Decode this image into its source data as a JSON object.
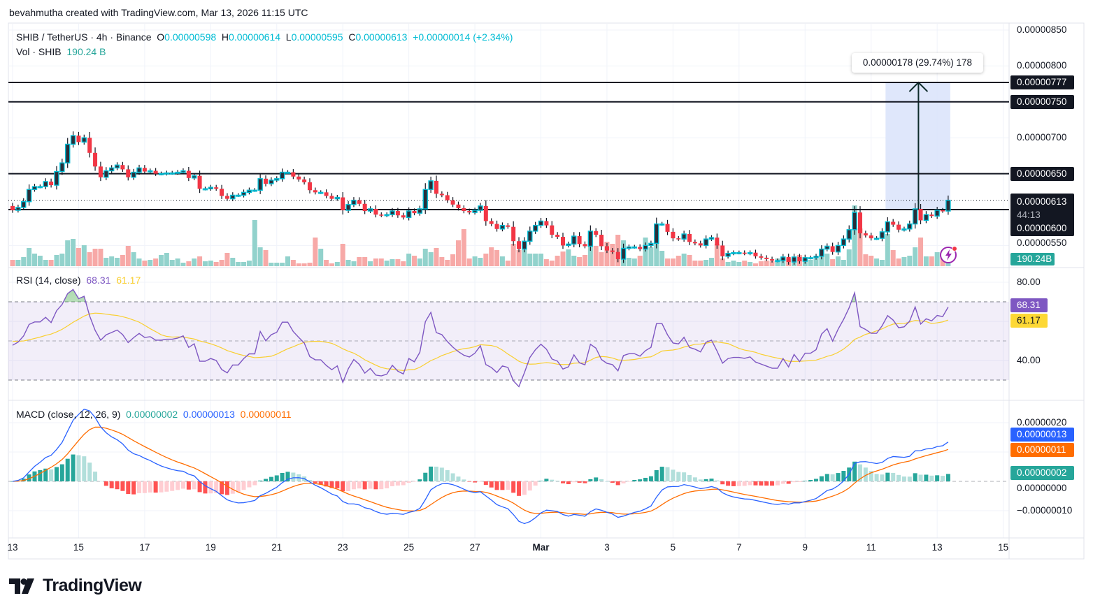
{
  "watermark_text": "bevahmutha created with TradingView.com, Mar 13, 2026 11:15 UTC",
  "legend": {
    "symbol": "SHIB / TetherUS · 4h · Binance",
    "open_label": "O",
    "open": "0.00000598",
    "high_label": "H",
    "high": "0.00000614",
    "low_label": "L",
    "low": "0.00000595",
    "close_label": "C",
    "close": "0.00000613",
    "change": "+0.00000014 (+2.34%)",
    "vol_label": "Vol · SHIB",
    "vol": "190.24 B"
  },
  "rsi_legend": {
    "label": "RSI (14, close)",
    "value": "68.31",
    "ma": "61.17"
  },
  "macd_legend": {
    "label": "MACD (close, 12, 26, 9)",
    "hist": "0.00000002",
    "macd": "0.00000013",
    "signal": "0.00000011"
  },
  "price_axis": {
    "ticks": [
      "0.00000850",
      "0.00000800",
      "0.00000700",
      "0.00000550"
    ],
    "current_price": "0.00000613",
    "countdown": "44:13",
    "volume_badge": "190.24B"
  },
  "horizontal_lines": [
    {
      "price": "0.00000777"
    },
    {
      "price": "0.00000750"
    },
    {
      "price": "0.00000650"
    },
    {
      "price": "0.00000600"
    }
  ],
  "measure": {
    "label": "0.00000178 (29.74%) 178",
    "from_price": "0.00000600",
    "to_price": "0.00000777"
  },
  "rsi_axis": {
    "ticks": [
      "80.00",
      "40.00"
    ],
    "value_badge": "68.31",
    "ma_badge": "61.17",
    "bands": [
      70,
      50,
      30
    ]
  },
  "macd_axis": {
    "ticks": [
      "0.00000020",
      "0.00000000",
      "−0.00000010"
    ],
    "macd_badge": "0.00000013",
    "signal_badge": "0.00000011",
    "hist_badge": "0.00000002"
  },
  "time_axis": [
    "13",
    "15",
    "17",
    "19",
    "21",
    "23",
    "25",
    "27",
    "Mar",
    "3",
    "5",
    "7",
    "9",
    "11",
    "13",
    "15"
  ],
  "logo_text": "TradingView",
  "colors": {
    "up_border": "#00bcd4",
    "up_body": "#2a2e39",
    "down": "#f23645",
    "vol_up": "#92d2cc",
    "vol_down": "#f7a9a7",
    "rsi": "#7e57c2",
    "rsi_ma": "#f9cf30",
    "macd": "#2962ff",
    "signal": "#ff6d00",
    "hist_up_strong": "#26a69a",
    "hist_up_weak": "#b2dfdb",
    "hist_down_strong": "#ff5252",
    "hist_down_weak": "#ffcdd2",
    "volume_badge": "#26a69a",
    "measure_fill": "#dbe4fb"
  },
  "chart_data": {
    "type": "candlestick",
    "symbol": "SHIB / TetherUS",
    "interval": "4h",
    "first_open": 6.05e-06,
    "closes": [
      5.99e-06,
      6.03e-06,
      6.11e-06,
      6.28e-06,
      6.32e-06,
      6.32e-06,
      6.39e-06,
      6.34e-06,
      6.53e-06,
      6.65e-06,
      6.91e-06,
      7.03e-06,
      6.94e-06,
      7e-06,
      6.79e-06,
      6.6e-06,
      6.45e-06,
      6.54e-06,
      6.58e-06,
      6.62e-06,
      6.56e-06,
      6.45e-06,
      6.52e-06,
      6.58e-06,
      6.53e-06,
      6.54e-06,
      6.5e-06,
      6.5e-06,
      6.51e-06,
      6.51e-06,
      6.52e-06,
      6.54e-06,
      6.44e-06,
      6.47e-06,
      6.29e-06,
      6.29e-06,
      6.31e-06,
      6.29e-06,
      6.19e-06,
      6.15e-06,
      6.2e-06,
      6.2e-06,
      6.24e-06,
      6.27e-06,
      6.27e-06,
      6.43e-06,
      6.36e-06,
      6.41e-06,
      6.43e-06,
      6.52e-06,
      6.52e-06,
      6.46e-06,
      6.42e-06,
      6.38e-06,
      6.27e-06,
      6.24e-06,
      6.24e-06,
      6.19e-06,
      6.15e-06,
      6.17e-06,
      5.99e-06,
      6.07e-06,
      6.13e-06,
      6.08e-06,
      5.98e-06,
      6.01e-06,
      5.93e-06,
      5.92e-06,
      5.93e-06,
      5.98e-06,
      5.92e-06,
      5.89e-06,
      5.98e-06,
      5.95e-06,
      6.01e-06,
      6.28e-06,
      6.4e-06,
      6.22e-06,
      6.2e-06,
      6.13e-06,
      6.07e-06,
      6.02e-06,
      5.98e-06,
      5.96e-06,
      5.99e-06,
      6.05e-06,
      5.84e-06,
      5.8e-06,
      5.73e-06,
      5.78e-06,
      5.76e-06,
      5.56e-06,
      5.45e-06,
      5.56e-06,
      5.7e-06,
      5.78e-06,
      5.84e-06,
      5.78e-06,
      5.65e-06,
      5.62e-06,
      5.5e-06,
      5.52e-06,
      5.63e-06,
      5.52e-06,
      5.49e-06,
      5.7e-06,
      5.65e-06,
      5.49e-06,
      5.43e-06,
      5.41e-06,
      5.31e-06,
      5.46e-06,
      5.48e-06,
      5.48e-06,
      5.45e-06,
      5.5e-06,
      5.53e-06,
      5.8e-06,
      5.8e-06,
      5.69e-06,
      5.6e-06,
      5.59e-06,
      5.66e-06,
      5.55e-06,
      5.53e-06,
      5.5e-06,
      5.59e-06,
      5.61e-06,
      5.5e-06,
      5.35e-06,
      5.39e-06,
      5.4e-06,
      5.4e-06,
      5.39e-06,
      5.4e-06,
      5.35e-06,
      5.33e-06,
      5.31e-06,
      5.29e-06,
      5.29e-06,
      5.34e-06,
      5.27e-06,
      5.34e-06,
      5.28e-06,
      5.33e-06,
      5.33e-06,
      5.35e-06,
      5.45e-06,
      5.49e-06,
      5.41e-06,
      5.5e-06,
      5.59e-06,
      5.72e-06,
      5.96e-06,
      5.67e-06,
      5.64e-06,
      5.6e-06,
      5.6e-06,
      5.69e-06,
      5.83e-06,
      5.79e-06,
      5.72e-06,
      5.73e-06,
      5.8e-06,
      6.01e-06,
      5.85e-06,
      5.93e-06,
      5.91e-06,
      5.99e-06,
      5.98e-06,
      6.13e-06
    ],
    "volumes_B": [
      288,
      288,
      416,
      832,
      576,
      480,
      288,
      288,
      512,
      576,
      1184,
      1248,
      832,
      960,
      640,
      800,
      800,
      384,
      448,
      384,
      512,
      928,
      640,
      352,
      256,
      288,
      352,
      512,
      608,
      288,
      352,
      160,
      224,
      352,
      448,
      224,
      256,
      192,
      288,
      608,
      384,
      192,
      192,
      256,
      2112,
      864,
      736,
      160,
      160,
      160,
      448,
      288,
      128,
      128,
      160,
      1312,
      800,
      288,
      128,
      192,
      1024,
      288,
      224,
      416,
      416,
      224,
      352,
      352,
      256,
      320,
      320,
      224,
      576,
      480,
      352,
      800,
      640,
      832,
      416,
      288,
      544,
      1184,
      1696,
      352,
      448,
      384,
      576,
      864,
      736,
      448,
      256,
      1024,
      736,
      768,
      576,
      576,
      576,
      320,
      256,
      480,
      672,
      768,
      480,
      416,
      512,
      1056,
      928,
      640,
      1120,
      1024,
      1440,
      1184,
      384,
      352,
      480,
      1312,
      864,
      1632,
      704,
      352,
      352,
      480,
      576,
      512,
      256,
      256,
      288,
      384,
      1024,
      352,
      192,
      256,
      192,
      256,
      192,
      128,
      224,
      256,
      224,
      352,
      352,
      352,
      384,
      512,
      416,
      288,
      352,
      576,
      576,
      320,
      448,
      288,
      768,
      2784,
      1728,
      544,
      480,
      352,
      288,
      1472,
      736,
      352,
      416,
      480,
      864,
      1312,
      448,
      448,
      640,
      384,
      190.24
    ],
    "price_range": [
      "0.00000520",
      "0.00000855"
    ],
    "rsi_range": [
      20,
      88
    ],
    "grid": true
  }
}
